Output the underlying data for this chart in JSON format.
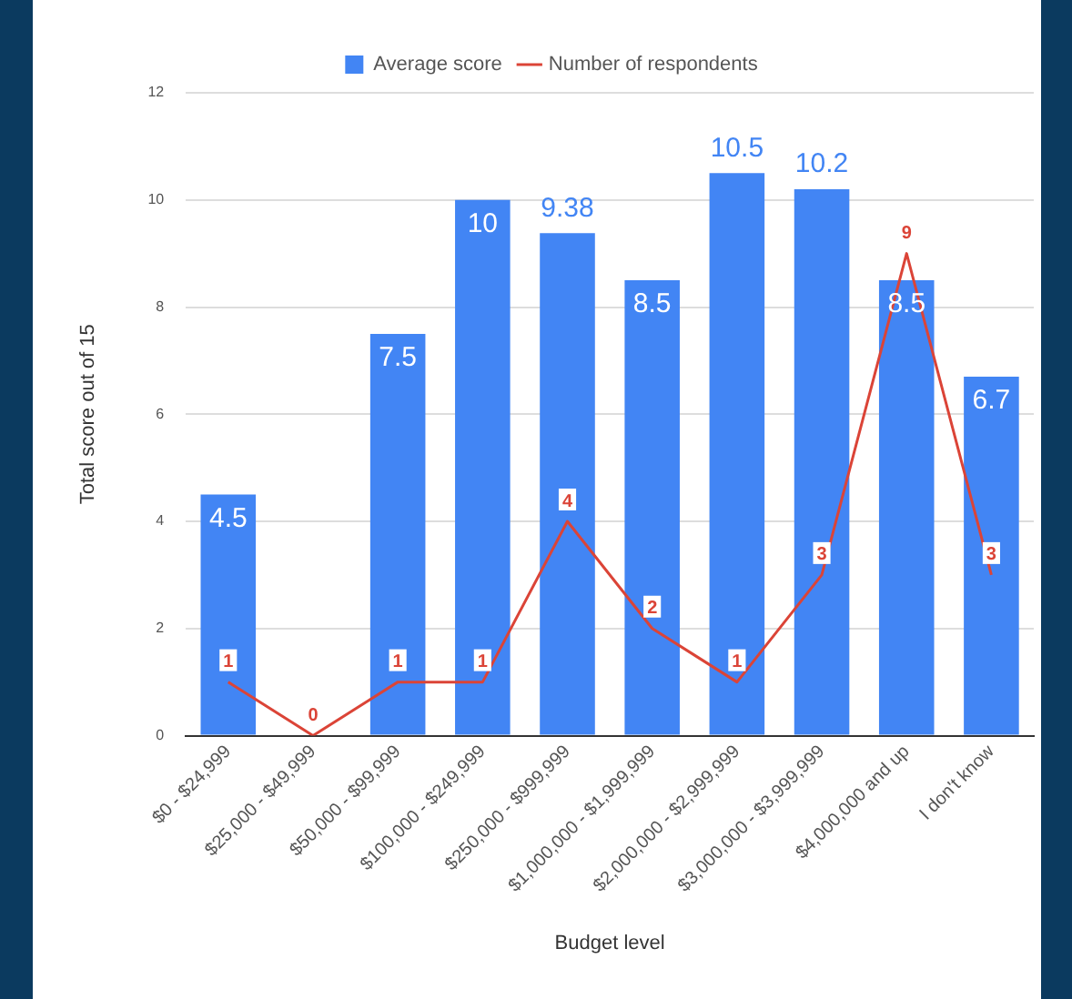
{
  "chart_data": {
    "type": "bar",
    "xlabel": "Budget level",
    "ylabel": "Total score out of 15",
    "categories": [
      "$0 - $24,999",
      "$25,000 - $49,999",
      "$50,000 - $99,999",
      "$100,000 - $249,999",
      "$250,000 - $999,999",
      "$1,000,000 - $1,999,999",
      "$2,000,000 - $2,999,999",
      "$3,000,000 - $3,999,999",
      "$4,000,000 and up",
      "I don't know"
    ],
    "series": [
      {
        "name": "Average score",
        "color": "#4285f4",
        "values": [
          4.5,
          null,
          7.5,
          10,
          9.38,
          8.5,
          10.5,
          10.2,
          8.5,
          6.7
        ]
      },
      {
        "name": "Number of respondents",
        "type": "line",
        "color": "#db4437",
        "values": [
          1,
          0,
          1,
          1,
          4,
          2,
          1,
          3,
          9,
          3
        ]
      }
    ],
    "ylim": [
      0,
      12
    ],
    "yticks": [
      0,
      2,
      4,
      6,
      8,
      10,
      12
    ],
    "grid": "y",
    "legend": "top",
    "marker": "none",
    "data_labels": true
  }
}
